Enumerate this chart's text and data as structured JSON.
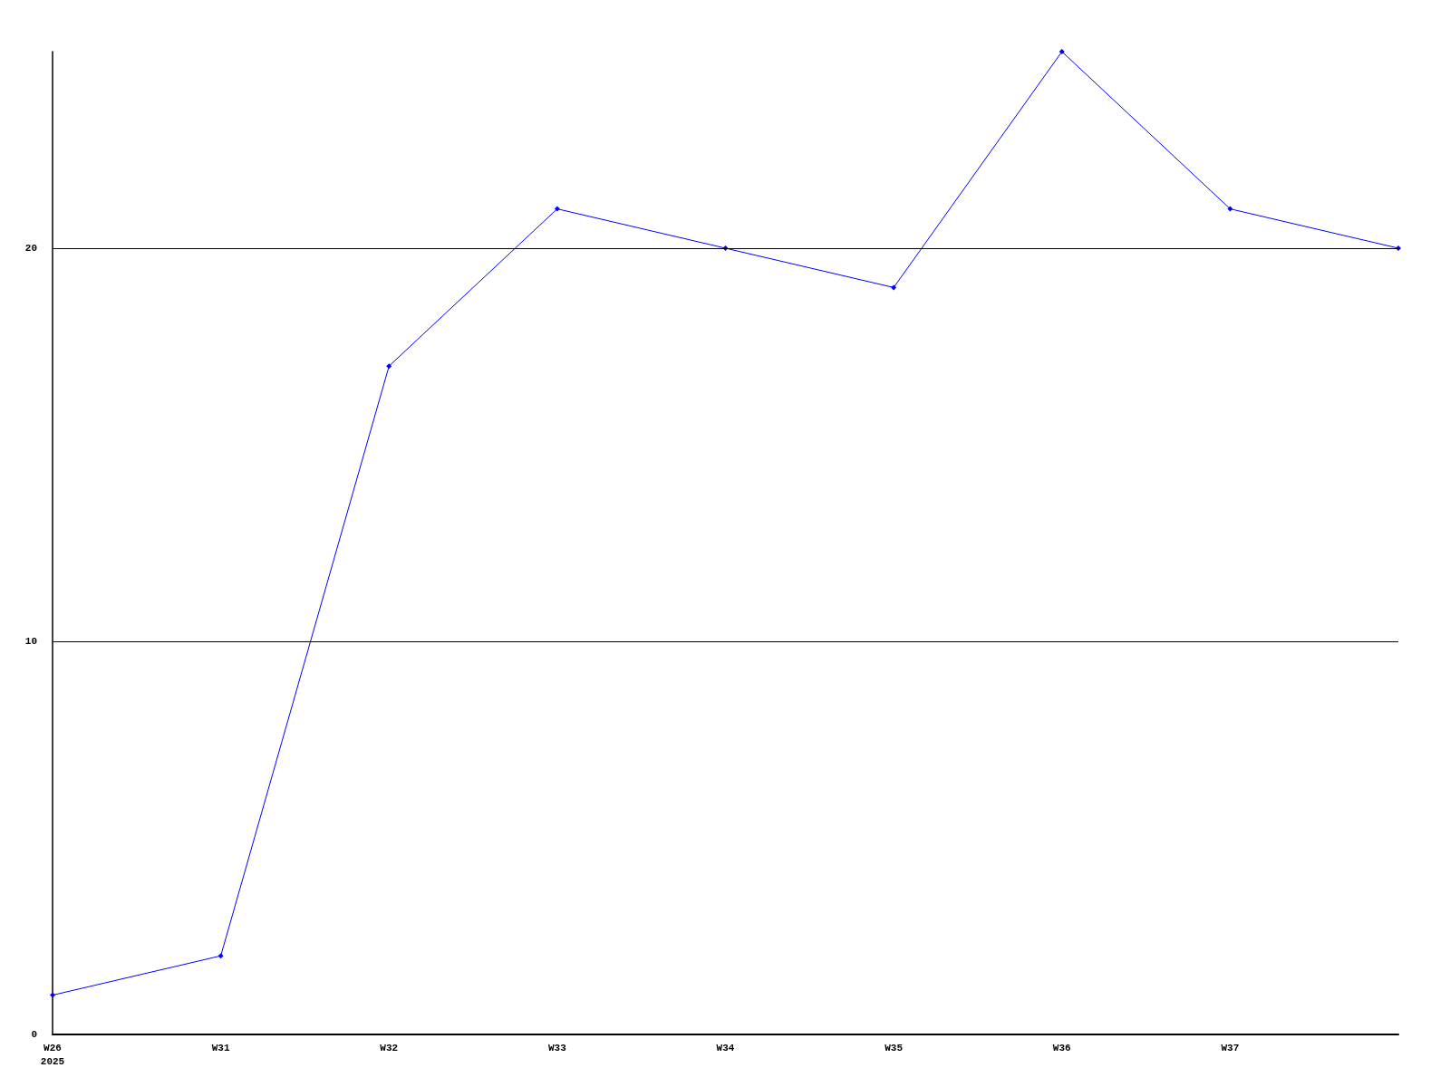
{
  "chart_data": {
    "type": "line",
    "categories": [
      "W26\n2025",
      "W31",
      "W32",
      "W33",
      "W34",
      "W35",
      "W36",
      "W37",
      null
    ],
    "series": [
      {
        "color": "#0000ff",
        "values": [
          1,
          2,
          17,
          21,
          20,
          19,
          25,
          21,
          20
        ]
      }
    ],
    "ylim": [
      0,
      25
    ],
    "yticks": [
      0,
      10,
      20
    ],
    "grid": "y",
    "legend": false,
    "marker": "diamond",
    "line_style": "solid"
  }
}
